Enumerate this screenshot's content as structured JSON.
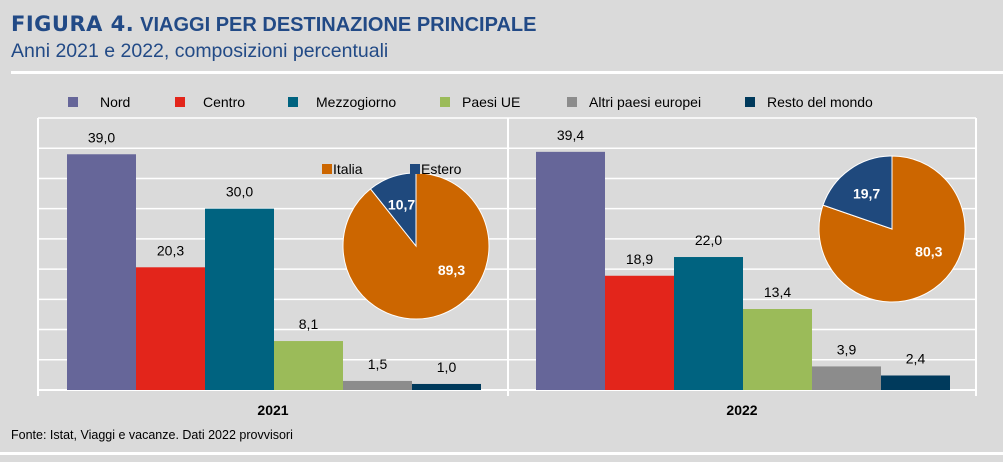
{
  "header": {
    "figure_label": "FIGURA 4.",
    "title": "VIAGGI PER DESTINAZIONE PRINCIPALE",
    "subtitle": "Anni 2021 e 2022, composizioni percentuali"
  },
  "source": "Fonte: Istat, Viaggi e vacanze. Dati 2022 provvisori",
  "chart_data": [
    {
      "type": "bar",
      "categories": [
        "2021",
        "2022"
      ],
      "ylim": [
        0,
        45
      ],
      "grid": true,
      "legend": "top",
      "series": [
        {
          "name": "Nord",
          "color": "#666699",
          "values": [
            39.0,
            39.4
          ],
          "labels": [
            "39,0",
            "39,4"
          ]
        },
        {
          "name": "Centro",
          "color": "#e3251b",
          "values": [
            20.3,
            18.9
          ],
          "labels": [
            "20,3",
            "18,9"
          ]
        },
        {
          "name": "Mezzogiorno",
          "color": "#006380",
          "values": [
            30.0,
            22.0
          ],
          "labels": [
            "30,0",
            "22,0"
          ]
        },
        {
          "name": "Paesi UE",
          "color": "#9bbb59",
          "values": [
            8.1,
            13.4
          ],
          "labels": [
            "8,1",
            "13,4"
          ]
        },
        {
          "name": "Altri paesi europei",
          "color": "#8c8c8c",
          "values": [
            1.5,
            3.9
          ],
          "labels": [
            "1,5",
            "3,9"
          ]
        },
        {
          "name": "Resto del mondo",
          "color": "#003a5c",
          "values": [
            1.0,
            2.4
          ],
          "labels": [
            "1,0",
            "2,4"
          ]
        }
      ]
    },
    {
      "type": "pie",
      "year": "2021",
      "legend": "top",
      "slices": [
        {
          "name": "Italia",
          "value": 89.3,
          "label": "89,3",
          "color": "#cc6600"
        },
        {
          "name": "Estero",
          "value": 10.7,
          "label": "10,7",
          "color": "#1f497d"
        }
      ]
    },
    {
      "type": "pie",
      "year": "2022",
      "slices": [
        {
          "name": "Italia",
          "value": 80.3,
          "label": "80,3",
          "color": "#cc6600"
        },
        {
          "name": "Estero",
          "value": 19.7,
          "label": "19,7",
          "color": "#1f497d"
        }
      ]
    }
  ]
}
